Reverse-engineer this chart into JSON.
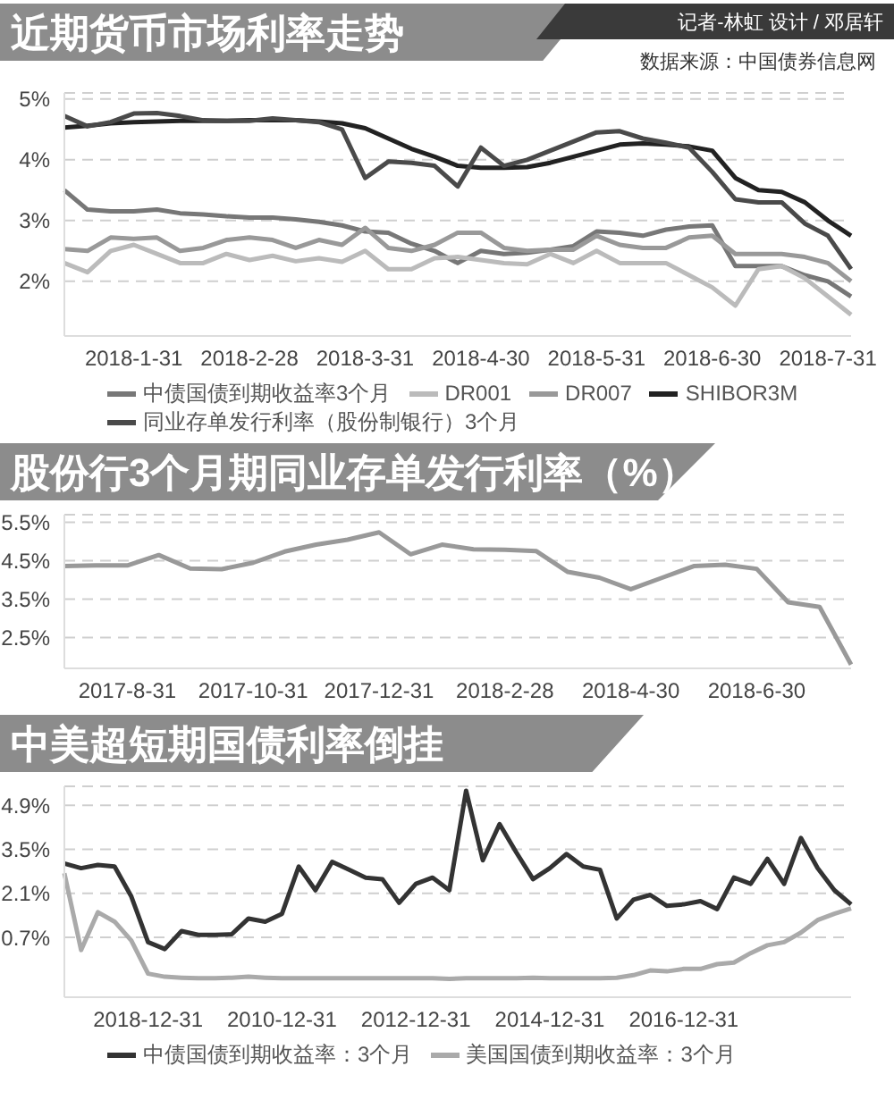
{
  "chart_data": [
    {
      "type": "line",
      "title": "近期货币市场利率走势",
      "annotations": [
        "记者-林虹 设计 / 邓居轩",
        "数据来源：中国债券信息网"
      ],
      "categories": [
        null,
        null,
        null,
        "2018-1-31",
        null,
        null,
        null,
        null,
        "2018-2-28",
        null,
        null,
        null,
        null,
        "2018-3-31",
        null,
        null,
        null,
        null,
        "2018-4-30",
        null,
        null,
        null,
        null,
        "2018-5-31",
        null,
        null,
        null,
        null,
        "2018-6-30",
        null,
        null,
        null,
        null,
        "2018-7-31",
        null
      ],
      "series": [
        {
          "name": "中债国债到期收益率3个月",
          "color": "#777777",
          "values": [
            3.5,
            3.18,
            3.15,
            3.15,
            3.18,
            3.12,
            3.1,
            3.07,
            3.05,
            3.05,
            3.02,
            2.98,
            2.92,
            2.82,
            2.8,
            2.62,
            2.5,
            2.3,
            2.5,
            2.45,
            2.47,
            2.52,
            2.58,
            2.82,
            2.8,
            2.75,
            2.85,
            2.9,
            2.92,
            2.25,
            2.25,
            2.25,
            2.1,
            2.0,
            1.75
          ]
        },
        {
          "name": "DR001",
          "color": "#bbbbbb",
          "values": [
            2.3,
            2.15,
            2.5,
            2.6,
            2.45,
            2.3,
            2.3,
            2.45,
            2.35,
            2.42,
            2.33,
            2.38,
            2.32,
            2.5,
            2.2,
            2.2,
            2.38,
            2.4,
            2.35,
            2.3,
            2.28,
            2.45,
            2.3,
            2.5,
            2.3,
            2.3,
            2.3,
            2.1,
            1.9,
            1.6,
            2.2,
            2.25,
            2.05,
            1.75,
            1.45
          ]
        },
        {
          "name": "DR007",
          "color": "#999999",
          "values": [
            2.53,
            2.5,
            2.72,
            2.7,
            2.72,
            2.5,
            2.55,
            2.68,
            2.72,
            2.68,
            2.55,
            2.68,
            2.6,
            2.88,
            2.55,
            2.5,
            2.6,
            2.8,
            2.8,
            2.55,
            2.5,
            2.52,
            2.52,
            2.75,
            2.6,
            2.55,
            2.55,
            2.72,
            2.75,
            2.45,
            2.45,
            2.45,
            2.4,
            2.3,
            2.0
          ]
        },
        {
          "name": "SHIBOR3M",
          "color": "#222222",
          "values": [
            4.53,
            4.56,
            4.6,
            4.62,
            4.63,
            4.64,
            4.64,
            4.64,
            4.65,
            4.65,
            4.65,
            4.63,
            4.6,
            4.52,
            4.35,
            4.18,
            4.05,
            3.9,
            3.87,
            3.87,
            3.88,
            3.95,
            4.05,
            4.15,
            4.25,
            4.27,
            4.25,
            4.22,
            4.15,
            3.7,
            3.5,
            3.47,
            3.3,
            3.0,
            2.75
          ]
        },
        {
          "name": "同业存单发行利率（股份制银行）3个月",
          "color": "#4a4a4a",
          "values": [
            4.72,
            4.55,
            4.62,
            4.76,
            4.77,
            4.72,
            4.65,
            4.64,
            4.64,
            4.68,
            4.65,
            4.62,
            4.5,
            3.7,
            3.97,
            3.95,
            3.9,
            3.56,
            4.2,
            3.9,
            4.0,
            4.15,
            4.3,
            4.45,
            4.47,
            4.35,
            4.28,
            4.2,
            3.8,
            3.35,
            3.3,
            3.3,
            2.95,
            2.75,
            2.2
          ]
        }
      ],
      "ylim": [
        1.1,
        5.1
      ],
      "yticks": [
        {
          "value": 2,
          "label": "2%"
        },
        {
          "value": 3,
          "label": "3%"
        },
        {
          "value": 4,
          "label": "4%"
        },
        {
          "value": 5,
          "label": "5%"
        }
      ],
      "grid": "y",
      "legend": "bottom",
      "line_style": "solid"
    },
    {
      "type": "line",
      "title": "股份行3个月期同业存单发行利率（%）",
      "categories": [
        null,
        null,
        "2017-8-31",
        null,
        null,
        null,
        "2017-10-31",
        null,
        null,
        null,
        "2017-12-31",
        null,
        null,
        null,
        "2018-2-28",
        null,
        null,
        null,
        "2018-4-30",
        null,
        null,
        null,
        "2018-6-30",
        null,
        null,
        null
      ],
      "series": [
        {
          "color": "#999999",
          "values": [
            4.36,
            4.38,
            4.38,
            4.65,
            4.3,
            4.28,
            4.45,
            4.74,
            4.92,
            5.05,
            5.24,
            4.67,
            4.92,
            4.8,
            4.79,
            4.75,
            4.21,
            4.06,
            3.76,
            4.06,
            4.36,
            4.4,
            4.29,
            3.42,
            3.3,
            1.8
          ]
        }
      ],
      "ylim": [
        1.7,
        5.7
      ],
      "yticks": [
        {
          "value": 2.5,
          "label": "2.5%"
        },
        {
          "value": 3.5,
          "label": "3.5%"
        },
        {
          "value": 4.5,
          "label": "4.5%"
        },
        {
          "value": 5.5,
          "label": "5.5%"
        }
      ],
      "grid": "y",
      "line_style": "solid"
    },
    {
      "type": "line",
      "title": "中美超短期国债利率倒挂",
      "categories": [
        null,
        null,
        null,
        null,
        null,
        "2018-12-31",
        null,
        null,
        null,
        null,
        null,
        null,
        null,
        "2010-12-31",
        null,
        null,
        null,
        null,
        null,
        null,
        null,
        "2012-12-31",
        null,
        null,
        null,
        null,
        null,
        null,
        null,
        "2014-12-31",
        null,
        null,
        null,
        null,
        null,
        null,
        null,
        "2016-12-31",
        null,
        null,
        null,
        null,
        null,
        null,
        null,
        null,
        null,
        null
      ],
      "series": [
        {
          "name": "中债国债到期收益率：3个月",
          "color": "#333333",
          "values": [
            3.05,
            2.9,
            3.0,
            2.95,
            2.0,
            0.55,
            0.33,
            0.9,
            0.78,
            0.78,
            0.8,
            1.3,
            1.2,
            1.45,
            2.95,
            2.2,
            3.1,
            2.85,
            2.6,
            2.55,
            1.8,
            2.4,
            2.6,
            2.2,
            5.36,
            3.15,
            4.3,
            3.4,
            2.55,
            2.9,
            3.35,
            2.95,
            2.85,
            1.3,
            1.9,
            2.05,
            1.7,
            1.75,
            1.85,
            1.6,
            2.6,
            2.4,
            3.2,
            2.4,
            3.86,
            2.9,
            2.2,
            1.75
          ]
        },
        {
          "name": "美国国债到期收益率：3个月",
          "color": "#aaaaaa",
          "values": [
            2.74,
            0.3,
            1.5,
            1.2,
            0.6,
            -0.45,
            -0.55,
            -0.58,
            -0.6,
            -0.6,
            -0.58,
            -0.55,
            -0.58,
            -0.6,
            -0.6,
            -0.6,
            -0.6,
            -0.6,
            -0.6,
            -0.6,
            -0.6,
            -0.6,
            -0.6,
            -0.62,
            -0.6,
            -0.6,
            -0.6,
            -0.6,
            -0.58,
            -0.6,
            -0.6,
            -0.6,
            -0.6,
            -0.58,
            -0.5,
            -0.35,
            -0.38,
            -0.3,
            -0.3,
            -0.15,
            -0.1,
            0.2,
            0.45,
            0.55,
            0.85,
            1.25,
            1.45,
            1.62
          ]
        }
      ],
      "ylim": [
        -1.2,
        5.5
      ],
      "yticks": [
        {
          "value": 0.7,
          "label": "0.7%"
        },
        {
          "value": 2.1,
          "label": "2.1%"
        },
        {
          "value": 3.5,
          "label": "3.5%"
        },
        {
          "value": 4.9,
          "label": "4.9%"
        }
      ],
      "grid": "y",
      "legend": "bottom",
      "line_style": "solid"
    }
  ]
}
